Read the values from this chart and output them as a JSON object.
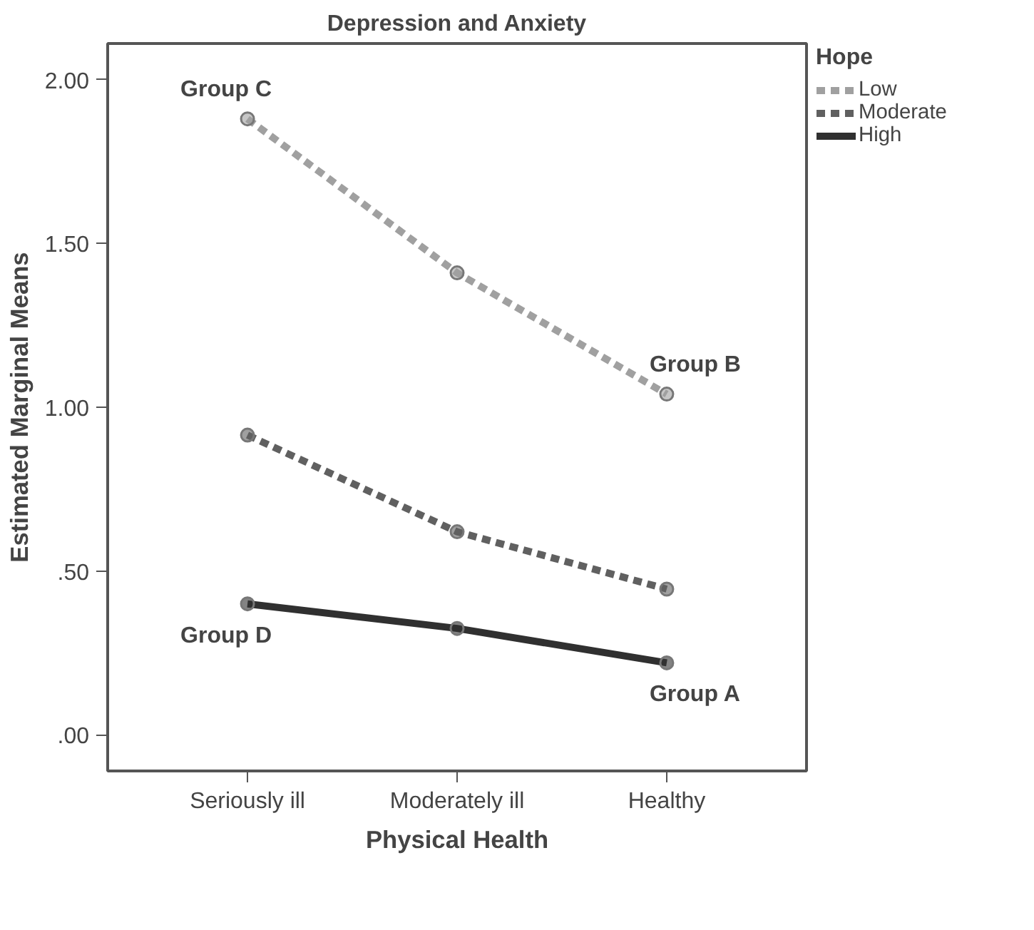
{
  "chart_data": {
    "type": "line",
    "title": "Depression and Anxiety",
    "xlabel": "Physical Health",
    "ylabel": "Estimated Marginal Means",
    "legend_title": "Hope",
    "categories": [
      "Seriously ill",
      "Moderately ill",
      "Healthy"
    ],
    "series": [
      {
        "name": "Low",
        "color": "#a0a0a0",
        "values": [
          1.88,
          1.41,
          1.04
        ],
        "line_style": "dashed"
      },
      {
        "name": "Moderate",
        "color": "#606060",
        "values": [
          0.915,
          0.62,
          0.445
        ],
        "line_style": "dashed"
      },
      {
        "name": "High",
        "color": "#303030",
        "values": [
          0.4,
          0.325,
          0.22
        ],
        "line_style": "solid"
      }
    ],
    "ylim": [
      -0.11,
      2.11
    ],
    "yticks": [
      {
        "value": 0,
        "label": ".00"
      },
      {
        "value": 0.5,
        "label": ".50"
      },
      {
        "value": 1,
        "label": "1.00"
      },
      {
        "value": 1.5,
        "label": "1.50"
      },
      {
        "value": 2,
        "label": "2.00"
      }
    ],
    "grid": false,
    "legend": "top right",
    "marker": "circle",
    "annotations": [
      {
        "text": "Group C",
        "x": "Seriously ill",
        "y": 1.88
      },
      {
        "text": "Group B",
        "x": "Healthy",
        "y": 1.04
      },
      {
        "text": "Group D",
        "x": "Seriously ill",
        "y": 0.4
      },
      {
        "text": "Group A",
        "x": "Healthy",
        "y": 0.22
      }
    ]
  }
}
